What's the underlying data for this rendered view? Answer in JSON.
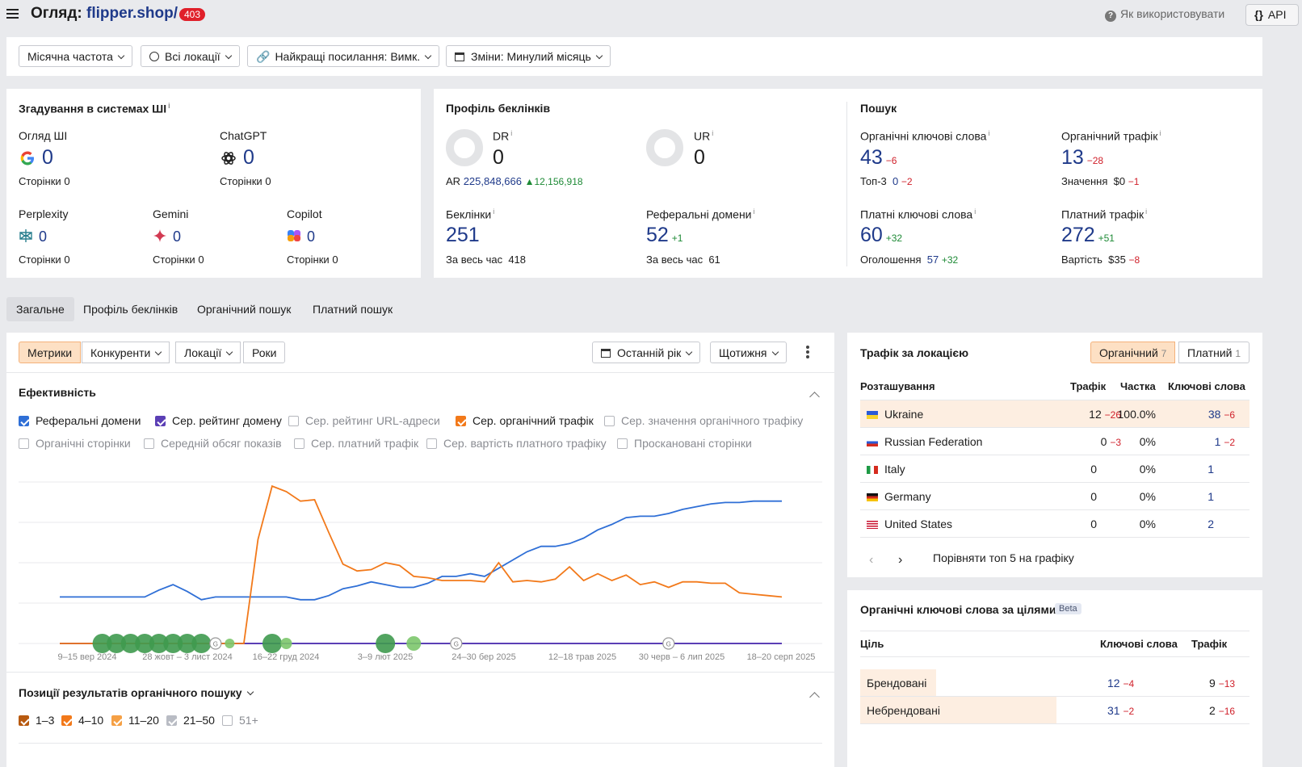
{
  "header": {
    "title_prefix": "Огляд:",
    "domain": "flipper.shop/",
    "status_badge": "403",
    "help_label": "Як використовувати",
    "api_label": "API"
  },
  "filters": {
    "frequency": "Місячна частота",
    "locations": "Всі локації",
    "best_links": "Найкращі посилання: Вимк.",
    "changes": "Зміни: Минулий місяць"
  },
  "ai_mentions": {
    "title": "Згадування в системах ШІ",
    "info": "i",
    "pages_label": "Сторінки",
    "items": [
      {
        "name": "Огляд ШІ",
        "value": "0",
        "pages": "0",
        "icon": "google-icon"
      },
      {
        "name": "ChatGPT",
        "value": "0",
        "pages": "0",
        "icon": "chatgpt-icon"
      },
      {
        "name": "Perplexity",
        "value": "0",
        "pages": "0",
        "icon": "perplexity-icon"
      },
      {
        "name": "Gemini",
        "value": "0",
        "pages": "0",
        "icon": "gemini-icon"
      },
      {
        "name": "Copilot",
        "value": "0",
        "pages": "0",
        "icon": "copilot-icon"
      }
    ]
  },
  "backlinks": {
    "title": "Профіль беклінків",
    "dr_label": "DR",
    "dr_value": "0",
    "ur_label": "UR",
    "ur_value": "0",
    "ar_label": "AR",
    "ar_value": "225,848,666",
    "ar_delta": "12,156,918",
    "backlinks_label": "Беклінки",
    "backlinks_value": "251",
    "backlinks_alltime_label": "За весь час",
    "backlinks_alltime": "418",
    "refdomains_label": "Реферальні домени",
    "refdomains_value": "52",
    "refdomains_delta": "+1",
    "refdomains_alltime_label": "За весь час",
    "refdomains_alltime": "61"
  },
  "search": {
    "title": "Пошук",
    "org_kw_label": "Органічні ключові слова",
    "org_kw_value": "43",
    "org_kw_delta": "−6",
    "top3_label": "Топ-3",
    "top3_value": "0",
    "top3_delta": "−2",
    "org_traffic_label": "Органічний трафік",
    "org_traffic_value": "13",
    "org_traffic_delta": "−28",
    "value_label": "Значення",
    "value_value": "$0",
    "value_delta": "−1",
    "paid_kw_label": "Платні ключові слова",
    "paid_kw_value": "60",
    "paid_kw_delta": "+32",
    "ads_label": "Оголошення",
    "ads_value": "57",
    "ads_delta": "+32",
    "paid_traffic_label": "Платний трафік",
    "paid_traffic_value": "272",
    "paid_traffic_delta": "+51",
    "cost_label": "Вартість",
    "cost_value": "$35",
    "cost_delta": "−8"
  },
  "tabs": [
    "Загальне",
    "Профіль беклінків",
    "Органічний пошук",
    "Платний пошук"
  ],
  "chart_panel": {
    "metrics_btn": "Метрики",
    "competitors_btn": "Конкуренти",
    "locations_btn": "Локації",
    "years_btn": "Роки",
    "period_btn": "Останній рік",
    "granularity_btn": "Щотижня",
    "efficiency_title": "Ефективність",
    "checkboxes": [
      {
        "label": "Реферальні домени",
        "checked": true,
        "color": "#2f6fd6"
      },
      {
        "label": "Сер. рейтинг домену",
        "checked": true,
        "color": "#5b3fb5"
      },
      {
        "label": "Сер. рейтинг URL-адреси",
        "checked": false,
        "color": ""
      },
      {
        "label": "Сер. органічний трафік",
        "checked": true,
        "color": "#f2791a"
      },
      {
        "label": "Сер. значення органічного трафіку",
        "checked": false,
        "color": ""
      },
      {
        "label": "Органічні сторінки",
        "checked": false,
        "color": ""
      },
      {
        "label": "Середній обсяг показів",
        "checked": false,
        "color": ""
      },
      {
        "label": "Сер. платний трафік",
        "checked": false,
        "color": ""
      },
      {
        "label": "Сер. вартість платного трафіку",
        "checked": false,
        "color": ""
      },
      {
        "label": "Проскановані сторінки",
        "checked": false,
        "color": ""
      }
    ],
    "positions_title": "Позиції результатів органічного пошуку",
    "positions": [
      {
        "label": "1–3",
        "checked": true,
        "color": "#b85a10"
      },
      {
        "label": "4–10",
        "checked": true,
        "color": "#f2791a"
      },
      {
        "label": "11–20",
        "checked": true,
        "color": "#f5a045"
      },
      {
        "label": "21–50",
        "checked": true,
        "color": "#b9bcc4"
      },
      {
        "label": "51+",
        "checked": false,
        "color": ""
      }
    ]
  },
  "chart_data": {
    "type": "line",
    "x_tick_labels": [
      "9–15 вер 2024",
      "28 жовт – 3 лист 2024",
      "16–22 груд 2024",
      "3–9 лют 2025",
      "24–30 бер 2025",
      "12–18 трав 2025",
      "30 черв – 6 лип 2025",
      "18–20 серп 2025"
    ],
    "series": [
      {
        "name": "Реферальні домени",
        "color": "#2f6fd6",
        "values": [
          34,
          34,
          34,
          34,
          34,
          34,
          34,
          39,
          43,
          38,
          32,
          34,
          34,
          34,
          34,
          34,
          34,
          32,
          32,
          35,
          40,
          42,
          45,
          43,
          41,
          41,
          44,
          49,
          49,
          51,
          49,
          55,
          61,
          67,
          71,
          71,
          73,
          77,
          83,
          87,
          92,
          93,
          93,
          95,
          98,
          100,
          102,
          103,
          103,
          104,
          104,
          104
        ]
      },
      {
        "name": "Сер. рейтинг домену",
        "color": "#5b3fb5",
        "values": [
          0,
          0,
          0,
          0,
          0,
          0,
          0,
          0,
          0,
          0,
          0,
          0,
          0,
          0,
          0,
          0,
          0,
          0,
          0,
          0,
          0,
          0,
          0,
          0,
          0,
          0,
          0,
          0,
          0,
          0,
          0,
          0,
          0,
          0,
          0,
          0,
          0,
          0,
          0,
          0,
          0,
          0,
          0,
          0,
          0,
          0,
          0,
          0,
          0,
          0,
          0,
          0
        ]
      },
      {
        "name": "Сер. органічний трафік",
        "color": "#f2791a",
        "values": [
          0,
          0,
          0,
          0,
          0,
          0,
          0,
          0,
          0,
          0,
          0,
          0,
          0,
          0,
          76,
          115,
          111,
          104,
          105,
          81,
          58,
          53,
          54,
          59,
          57,
          49,
          48,
          46,
          46,
          46,
          45,
          59,
          45,
          46,
          45,
          47,
          56,
          46,
          51,
          46,
          50,
          43,
          45,
          41,
          45,
          45,
          44,
          44,
          37,
          36,
          35,
          34
        ]
      }
    ],
    "ylim": [
      0,
      118
    ],
    "events": [
      {
        "x": 3,
        "r": 12,
        "type": "dot"
      },
      {
        "x": 4,
        "r": 12,
        "type": "dot"
      },
      {
        "x": 5,
        "r": 12,
        "type": "dot"
      },
      {
        "x": 6,
        "r": 12,
        "type": "dot"
      },
      {
        "x": 7,
        "r": 12,
        "type": "dot"
      },
      {
        "x": 8,
        "r": 12,
        "type": "dot"
      },
      {
        "x": 9,
        "r": 12,
        "type": "dot"
      },
      {
        "x": 10,
        "r": 12,
        "type": "dot"
      },
      {
        "x": 11,
        "r": 7,
        "type": "google"
      },
      {
        "x": 12,
        "r": 6,
        "type": "light"
      },
      {
        "x": 15,
        "r": 12,
        "type": "dot"
      },
      {
        "x": 16,
        "r": 7,
        "type": "light"
      },
      {
        "x": 23,
        "r": 12,
        "type": "dot"
      },
      {
        "x": 25,
        "r": 9,
        "type": "light"
      },
      {
        "x": 28,
        "r": 7,
        "type": "google"
      },
      {
        "x": 43,
        "r": 7,
        "type": "google"
      }
    ]
  },
  "traffic_by_location": {
    "title": "Трафік за локацією",
    "organic_label": "Органічний",
    "organic_count": "7",
    "paid_label": "Платний",
    "paid_count": "1",
    "columns": [
      "Розташування",
      "Трафік",
      "Частка",
      "Ключові слова"
    ],
    "rows": [
      {
        "country": "Ukraine",
        "traffic": "12",
        "traffic_delta": "−26",
        "share": "100.0%",
        "keywords": "38",
        "kw_delta": "−6",
        "flag": "ua"
      },
      {
        "country": "Russian Federation",
        "traffic": "0",
        "traffic_delta": "−3",
        "share": "0%",
        "keywords": "1",
        "kw_delta": "−2",
        "flag": "ru"
      },
      {
        "country": "Italy",
        "traffic": "0",
        "traffic_delta": "",
        "share": "0%",
        "keywords": "1",
        "kw_delta": "",
        "flag": "it"
      },
      {
        "country": "Germany",
        "traffic": "0",
        "traffic_delta": "",
        "share": "0%",
        "keywords": "1",
        "kw_delta": "",
        "flag": "de"
      },
      {
        "country": "United States",
        "traffic": "0",
        "traffic_delta": "",
        "share": "0%",
        "keywords": "2",
        "kw_delta": "",
        "flag": "us"
      }
    ],
    "compare_label": "Порівняти топ 5 на графіку"
  },
  "intent": {
    "title": "Органічні ключові слова за цілями",
    "beta": "Beta",
    "columns": [
      "Ціль",
      "Ключові слова",
      "Трафік"
    ],
    "rows": [
      {
        "label": "Брендовані",
        "keywords": "12",
        "kw_delta": "−4",
        "traffic": "9",
        "traffic_delta": "−13",
        "share": 0.28
      },
      {
        "label": "Небрендовані",
        "keywords": "31",
        "kw_delta": "−2",
        "traffic": "2",
        "traffic_delta": "−16",
        "share": 0.72
      }
    ]
  }
}
